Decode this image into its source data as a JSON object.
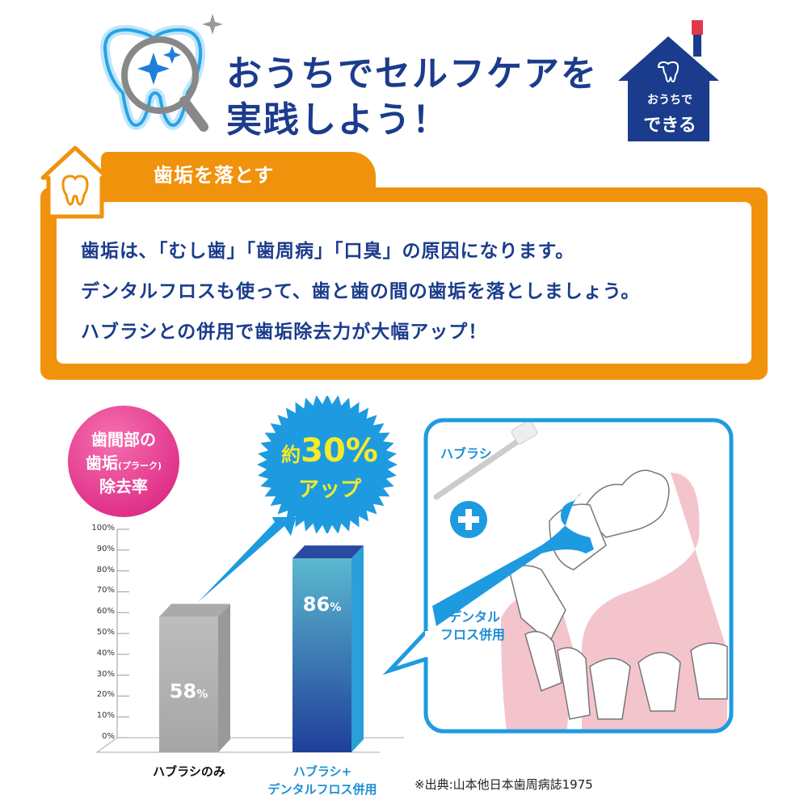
{
  "header": {
    "title_line1": "おうちでセルフケアを",
    "title_line2": "実践しよう！",
    "house_badge_line1": "おうちで",
    "house_badge_line2": "できる"
  },
  "section": {
    "tab_label": "歯垢を落とす",
    "lines": [
      "歯垢は､「むし歯」「歯周病」「口臭」の原因になります。",
      "デンタルフロスも使って、歯と歯の間の歯垢を落としましょう。",
      "ハブラシとの併用で歯垢除去力が大幅アップ！"
    ]
  },
  "badge": {
    "line1": "歯間部の",
    "line2a": "歯垢",
    "line2b": "(プラーク)",
    "line3": "除去率"
  },
  "burst": {
    "line1a": "約",
    "line1b": "30%",
    "line2": "アップ"
  },
  "illustration": {
    "toothbrush_label": "ハブラシ",
    "floss_label_line1": "デンタル",
    "floss_label_line2": "フロス併用"
  },
  "source": "※出典:山本他日本歯周病誌1975",
  "colors": {
    "navy": "#1b3c8c",
    "orange": "#f0920c",
    "blue": "#1e9be0",
    "pink": "#e0338a",
    "yellow": "#f5ea2a",
    "gum": "#f4c4cc"
  },
  "chart_data": {
    "type": "bar",
    "categories": [
      "ハブラシのみ",
      "ハブラシ+\nデンタルフロス併用"
    ],
    "category_lines": [
      [
        "ハブラシのみ"
      ],
      [
        "ハブラシ+",
        "デンタルフロス併用"
      ]
    ],
    "values": [
      58,
      86
    ],
    "data_labels": [
      "58",
      "86"
    ],
    "unit": "%",
    "ylim": [
      0,
      100
    ],
    "yticks": [
      "0%",
      "10%",
      "20%",
      "30%",
      "40%",
      "50%",
      "60%",
      "70%",
      "80%",
      "90%",
      "100%"
    ],
    "grid": false
  }
}
